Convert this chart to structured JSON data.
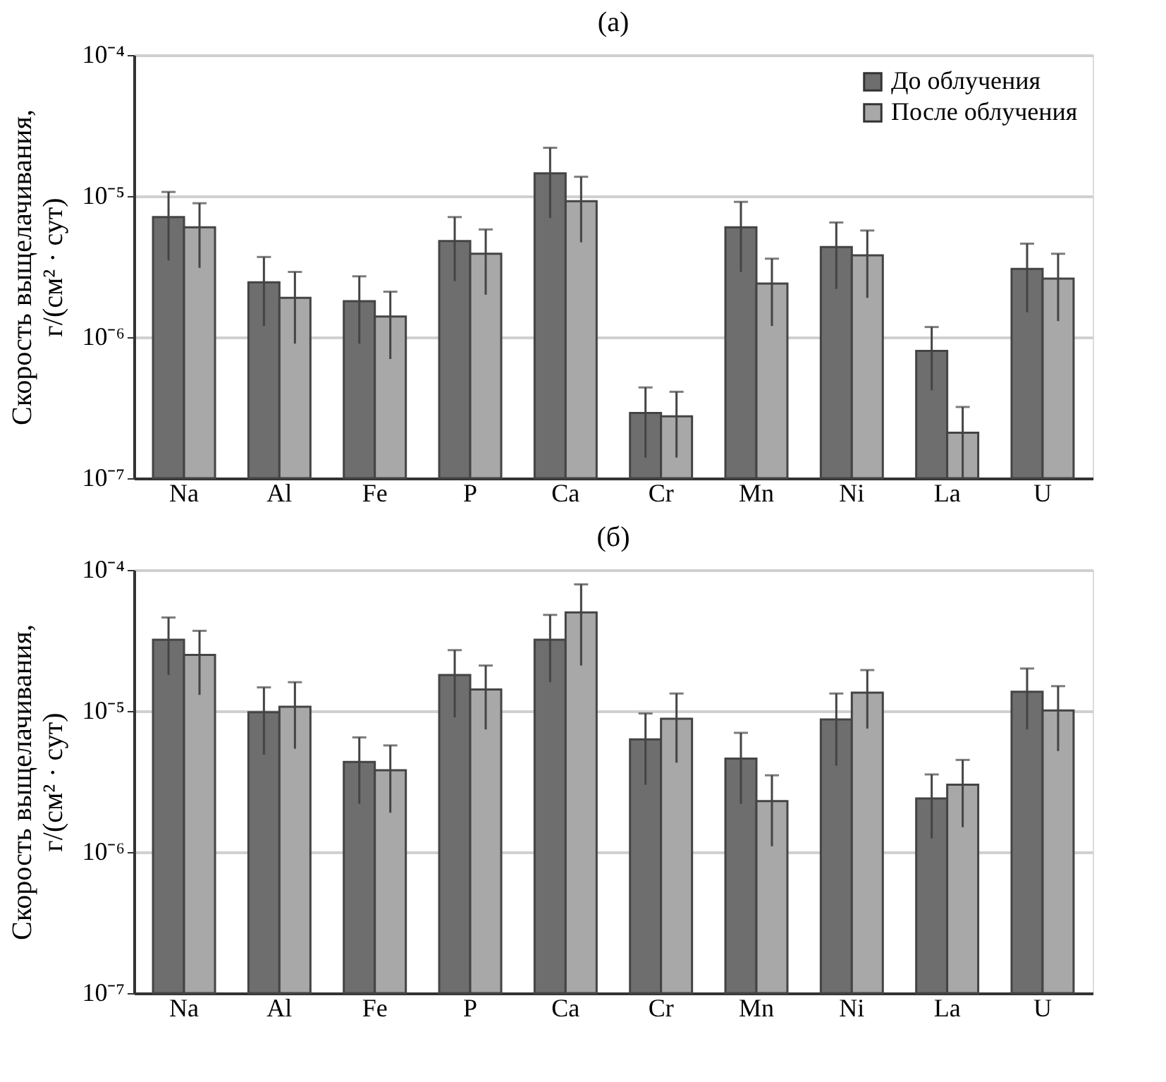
{
  "chart_data": [
    {
      "type": "bar",
      "title": "(a)",
      "ylabel": "Скорость выщелачивания,\nг/(см² · сут)",
      "categories": [
        "Na",
        "Al",
        "Fe",
        "P",
        "Ca",
        "Cr",
        "Mn",
        "Ni",
        "La",
        "U"
      ],
      "log": true,
      "grid": "y",
      "legend": "top right",
      "ylim": [
        1e-07,
        0.0001
      ],
      "yticks": [
        {
          "value": 1e-07,
          "label": "10⁻⁷"
        },
        {
          "value": 1e-06,
          "label": "10⁻⁶"
        },
        {
          "value": 1e-05,
          "label": "10⁻⁵"
        },
        {
          "value": 0.0001,
          "label": "10⁻⁴"
        }
      ],
      "series": [
        {
          "name": "До облучения",
          "color": "#6e6e6e",
          "values": [
            7.1e-06,
            2.45e-06,
            1.8e-06,
            4.8e-06,
            1.45e-05,
            2.9e-07,
            6e-06,
            4.35e-06,
            8e-07,
            3.05e-06
          ],
          "errors": [
            3.6e-06,
            1.25e-06,
            9e-07,
            2.3e-06,
            7.5e-06,
            1.5e-07,
            3.1e-06,
            2.15e-06,
            3.8e-07,
            1.55e-06
          ]
        },
        {
          "name": "После облучения",
          "color": "#a8a8a8",
          "values": [
            6e-06,
            1.9e-06,
            1.4e-06,
            3.9e-06,
            9.2e-06,
            2.75e-07,
            2.4e-06,
            3.8e-06,
            2.1e-07,
            2.6e-06
          ],
          "errors": [
            2.9e-06,
            1e-06,
            7e-07,
            1.9e-06,
            4.5e-06,
            1.35e-07,
            1.2e-06,
            1.9e-06,
            1.1e-07,
            1.3e-06
          ]
        }
      ]
    },
    {
      "type": "bar",
      "title": "(б)",
      "ylabel": "Скорость выщелачивания,\nг/(см² · сут)",
      "categories": [
        "Na",
        "Al",
        "Fe",
        "P",
        "Ca",
        "Cr",
        "Mn",
        "Ni",
        "La",
        "U"
      ],
      "log": true,
      "grid": "y",
      "legend": "top right",
      "ylim": [
        1e-07,
        0.0001
      ],
      "yticks": [
        {
          "value": 1e-07,
          "label": "10⁻⁷"
        },
        {
          "value": 1e-06,
          "label": "10⁻⁶"
        },
        {
          "value": 1e-05,
          "label": "10⁻⁵"
        },
        {
          "value": 0.0001,
          "label": "10⁻⁴"
        }
      ],
      "series": [
        {
          "name": "До облучения",
          "color": "#6e6e6e",
          "values": [
            3.2e-05,
            9.8e-06,
            4.35e-06,
            1.8e-05,
            3.2e-05,
            6.3e-06,
            4.6e-06,
            8.7e-06,
            2.4e-06,
            1.37e-05
          ],
          "errors": [
            1.4e-05,
            4.9e-06,
            2.15e-06,
            9e-06,
            1.6e-05,
            3.3e-06,
            2.4e-06,
            4.6e-06,
            1.15e-06,
            6.3e-06
          ]
        },
        {
          "name": "После облучения",
          "color": "#a8a8a8",
          "values": [
            2.5e-05,
            1.07e-05,
            3.8e-06,
            1.42e-05,
            5e-05,
            8.8e-06,
            2.3e-06,
            1.35e-05,
            3e-06,
            1.01e-05
          ],
          "errors": [
            1.2e-05,
            5.3e-06,
            1.9e-06,
            6.8e-06,
            2.9e-05,
            4.5e-06,
            1.2e-06,
            6e-06,
            1.5e-06,
            4.9e-06
          ]
        }
      ]
    }
  ]
}
